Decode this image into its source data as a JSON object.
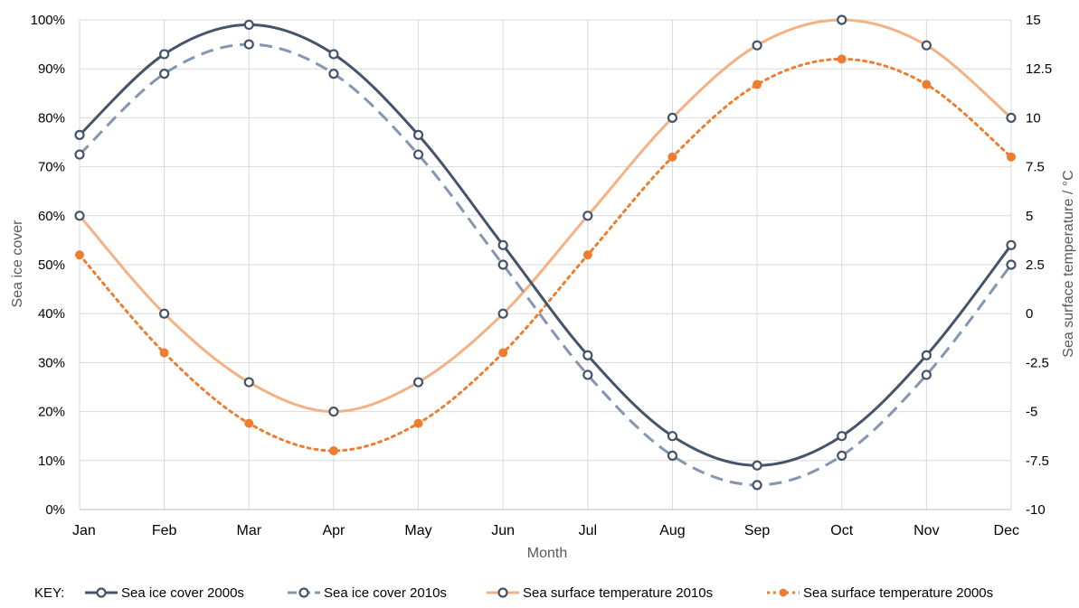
{
  "chart_data": {
    "type": "line",
    "categories": [
      "Jan",
      "Feb",
      "Mar",
      "Apr",
      "May",
      "Jun",
      "Jul",
      "Aug",
      "Sep",
      "Oct",
      "Nov",
      "Dec"
    ],
    "xlabel": "Month",
    "ylabel": "Sea ice cover",
    "ylabel_right": "Sea surface temperature / °C",
    "ylim": [
      0,
      100
    ],
    "yticks": [
      "0%",
      "10%",
      "20%",
      "30%",
      "40%",
      "50%",
      "60%",
      "70%",
      "80%",
      "90%",
      "100%"
    ],
    "ylim_right": [
      -10,
      15
    ],
    "yticks_right": [
      "-10",
      "-7.5",
      "-5",
      "-2.5",
      "0",
      "2.5",
      "5",
      "7.5",
      "10",
      "12.5",
      "15"
    ],
    "grid": true,
    "legend_position": "bottom",
    "legend_prefix": "KEY:",
    "series": [
      {
        "name": "Sea ice cover 2000s",
        "axis": "left",
        "color": "#44546a",
        "dash": "solid",
        "marker": "circle-open",
        "values": [
          76.5,
          93,
          99,
          93,
          76.5,
          54,
          31.5,
          15,
          9,
          15,
          31.5,
          54
        ]
      },
      {
        "name": "Sea ice cover 2010s",
        "axis": "left",
        "color": "#8496b0",
        "dash": "dashed",
        "marker": "circle-open",
        "values": [
          72.5,
          89,
          95,
          89,
          72.5,
          50,
          27.5,
          11,
          5,
          11,
          27.5,
          50
        ]
      },
      {
        "name": "Sea surface temperature 2010s",
        "axis": "right",
        "color": "#f4b183",
        "dash": "solid",
        "marker": "circle-open",
        "values": [
          5,
          0,
          -3.5,
          -5,
          -3.5,
          0,
          5,
          10,
          13.7,
          15,
          13.7,
          10
        ]
      },
      {
        "name": "Sea surface temperature 2000s",
        "axis": "right",
        "color": "#ed7d31",
        "dash": "dotted",
        "marker": "circle-filled",
        "values": [
          3,
          -2,
          -5.6,
          -7,
          -5.6,
          -2,
          3,
          8,
          11.7,
          13,
          11.7,
          8
        ]
      }
    ]
  }
}
